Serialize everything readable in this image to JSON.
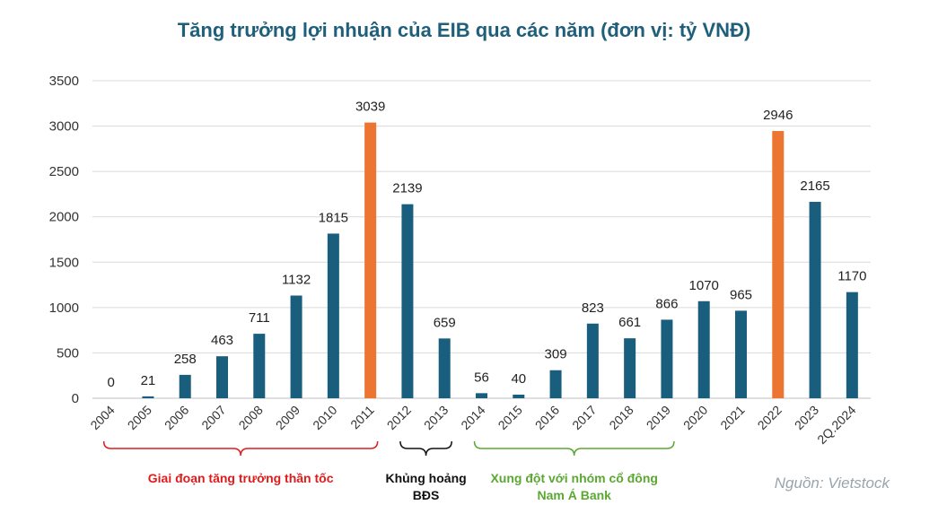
{
  "chart_data": {
    "type": "bar",
    "title": "Tăng trưởng lợi nhuận của EIB qua các năm (đơn vị: tỷ VNĐ)",
    "categories": [
      "2004",
      "2005",
      "2006",
      "2007",
      "2008",
      "2009",
      "2010",
      "2011",
      "2012",
      "2013",
      "2014",
      "2015",
      "2016",
      "2017",
      "2018",
      "2019",
      "2020",
      "2021",
      "2022",
      "2023",
      "2Q.2024"
    ],
    "values": [
      0,
      21,
      258,
      463,
      711,
      1132,
      1815,
      3039,
      2139,
      659,
      56,
      40,
      309,
      823,
      661,
      866,
      1070,
      965,
      2946,
      2165,
      1170
    ],
    "highlight": [
      "2011",
      "2022"
    ],
    "ylim": [
      0,
      3500
    ],
    "yticks": [
      0,
      500,
      1000,
      1500,
      2000,
      2500,
      3000,
      3500
    ],
    "grid": true,
    "colors": {
      "bar": "#1a5e7e",
      "highlight": "#ec7531"
    },
    "annotations": [
      {
        "text": [
          "Giai đoạn tăng trưởng thần tốc"
        ],
        "from": "2004",
        "to": "2011",
        "color": "#e01b1b"
      },
      {
        "text": [
          "Khủng hoảng",
          "BĐS"
        ],
        "from": "2012",
        "to": "2013",
        "color": "#111111"
      },
      {
        "text": [
          "Xung đột với nhóm cổ đông",
          "Nam Á Bank"
        ],
        "from": "2014",
        "to": "2019",
        "color": "#5aa832"
      }
    ],
    "source": "Nguồn: Vietstock"
  }
}
